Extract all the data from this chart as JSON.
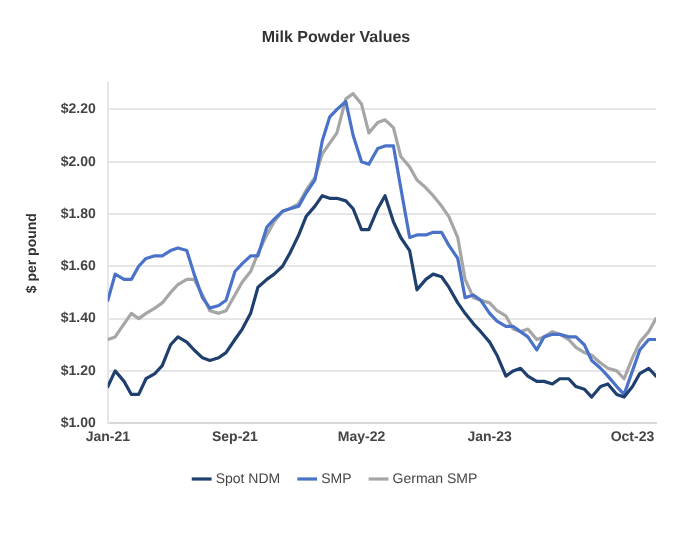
{
  "chart_data": {
    "type": "line",
    "title": "Milk Powder Values",
    "ylabel": "$ per pound",
    "x": [
      "2021-01-01",
      "2021-01-15",
      "2021-02-01",
      "2021-02-15",
      "2021-03-01",
      "2021-03-15",
      "2021-04-01",
      "2021-04-15",
      "2021-05-01",
      "2021-05-15",
      "2021-06-01",
      "2021-06-15",
      "2021-07-01",
      "2021-07-15",
      "2021-08-01",
      "2021-08-15",
      "2021-09-01",
      "2021-09-15",
      "2021-10-01",
      "2021-10-15",
      "2021-11-01",
      "2021-11-15",
      "2021-12-01",
      "2021-12-15",
      "2022-01-01",
      "2022-01-15",
      "2022-02-01",
      "2022-02-15",
      "2022-03-01",
      "2022-03-15",
      "2022-04-01",
      "2022-04-15",
      "2022-05-01",
      "2022-05-15",
      "2022-06-01",
      "2022-06-15",
      "2022-07-01",
      "2022-07-15",
      "2022-08-01",
      "2022-08-15",
      "2022-09-01",
      "2022-09-15",
      "2022-10-01",
      "2022-10-15",
      "2022-11-01",
      "2022-11-15",
      "2022-12-01",
      "2022-12-15",
      "2023-01-01",
      "2023-01-15",
      "2023-02-01",
      "2023-02-15",
      "2023-03-01",
      "2023-03-15",
      "2023-04-01",
      "2023-04-15",
      "2023-05-01",
      "2023-05-15",
      "2023-06-01",
      "2023-06-15",
      "2023-07-01",
      "2023-07-15",
      "2023-08-01",
      "2023-08-15",
      "2023-09-01",
      "2023-09-15",
      "2023-10-01",
      "2023-10-15",
      "2023-11-01",
      "2023-11-15"
    ],
    "series": [
      {
        "name": "Spot NDM",
        "color": "#1f3f6e",
        "values": [
          1.14,
          1.2,
          1.16,
          1.11,
          1.11,
          1.17,
          1.19,
          1.22,
          1.3,
          1.33,
          1.31,
          1.28,
          1.25,
          1.24,
          1.25,
          1.27,
          1.32,
          1.36,
          1.42,
          1.52,
          1.55,
          1.57,
          1.6,
          1.65,
          1.72,
          1.79,
          1.83,
          1.87,
          1.86,
          1.86,
          1.85,
          1.82,
          1.74,
          1.74,
          1.82,
          1.87,
          1.77,
          1.71,
          1.66,
          1.51,
          1.55,
          1.57,
          1.56,
          1.52,
          1.46,
          1.42,
          1.38,
          1.35,
          1.31,
          1.26,
          1.18,
          1.2,
          1.21,
          1.18,
          1.16,
          1.16,
          1.15,
          1.17,
          1.17,
          1.14,
          1.13,
          1.1,
          1.14,
          1.15,
          1.11,
          1.1,
          1.14,
          1.19,
          1.21,
          1.18
        ]
      },
      {
        "name": "SMP",
        "color": "#4a72c9",
        "values": [
          1.47,
          1.57,
          1.55,
          1.55,
          1.6,
          1.63,
          1.64,
          1.64,
          1.66,
          1.67,
          1.66,
          1.57,
          1.48,
          1.44,
          1.45,
          1.47,
          1.58,
          1.61,
          1.64,
          1.64,
          1.75,
          1.78,
          1.81,
          1.82,
          1.83,
          1.88,
          1.93,
          2.08,
          2.17,
          2.2,
          2.23,
          2.1,
          2.0,
          1.99,
          2.05,
          2.06,
          2.06,
          1.9,
          1.71,
          1.72,
          1.72,
          1.73,
          1.73,
          1.68,
          1.63,
          1.48,
          1.49,
          1.47,
          1.42,
          1.39,
          1.37,
          1.37,
          1.35,
          1.33,
          1.28,
          1.33,
          1.34,
          1.34,
          1.33,
          1.33,
          1.3,
          1.24,
          1.21,
          1.18,
          1.14,
          1.11,
          1.2,
          1.28,
          1.32,
          1.32
        ]
      },
      {
        "name": "German SMP",
        "color": "#a6a6a6",
        "values": [
          1.32,
          1.33,
          1.38,
          1.42,
          1.4,
          1.42,
          1.44,
          1.46,
          1.5,
          1.53,
          1.55,
          1.55,
          1.49,
          1.43,
          1.42,
          1.43,
          1.49,
          1.54,
          1.58,
          1.65,
          1.72,
          1.77,
          1.81,
          1.82,
          1.84,
          1.89,
          1.94,
          2.03,
          2.07,
          2.11,
          2.24,
          2.26,
          2.22,
          2.11,
          2.15,
          2.16,
          2.13,
          2.02,
          1.98,
          1.93,
          1.9,
          1.87,
          1.83,
          1.79,
          1.71,
          1.55,
          1.48,
          1.47,
          1.46,
          1.43,
          1.41,
          1.36,
          1.35,
          1.36,
          1.32,
          1.33,
          1.35,
          1.34,
          1.32,
          1.29,
          1.27,
          1.26,
          1.23,
          1.21,
          1.2,
          1.17,
          1.25,
          1.31,
          1.35,
          1.4
        ]
      }
    ],
    "xlim": [
      "2021-01-01",
      "2023-11-15"
    ],
    "xticks": [
      {
        "value": "2021-01-01",
        "label": "Jan-21"
      },
      {
        "value": "2021-09-01",
        "label": "Sep-21"
      },
      {
        "value": "2022-05-01",
        "label": "May-22"
      },
      {
        "value": "2023-01-01",
        "label": "Jan-23"
      },
      {
        "value": "2023-10-01",
        "label": "Oct-23"
      }
    ],
    "ylim": [
      1.0,
      2.3
    ],
    "yticks": [
      {
        "value": 1.0,
        "label": "$1.00"
      },
      {
        "value": 1.2,
        "label": "$1.20"
      },
      {
        "value": 1.4,
        "label": "$1.40"
      },
      {
        "value": 1.6,
        "label": "$1.60"
      },
      {
        "value": 1.8,
        "label": "$1.80"
      },
      {
        "value": 2.0,
        "label": "$2.00"
      },
      {
        "value": 2.2,
        "label": "$2.20"
      }
    ],
    "grid": "y",
    "legend": "bottom",
    "marker": "none",
    "line_style": "solid"
  }
}
